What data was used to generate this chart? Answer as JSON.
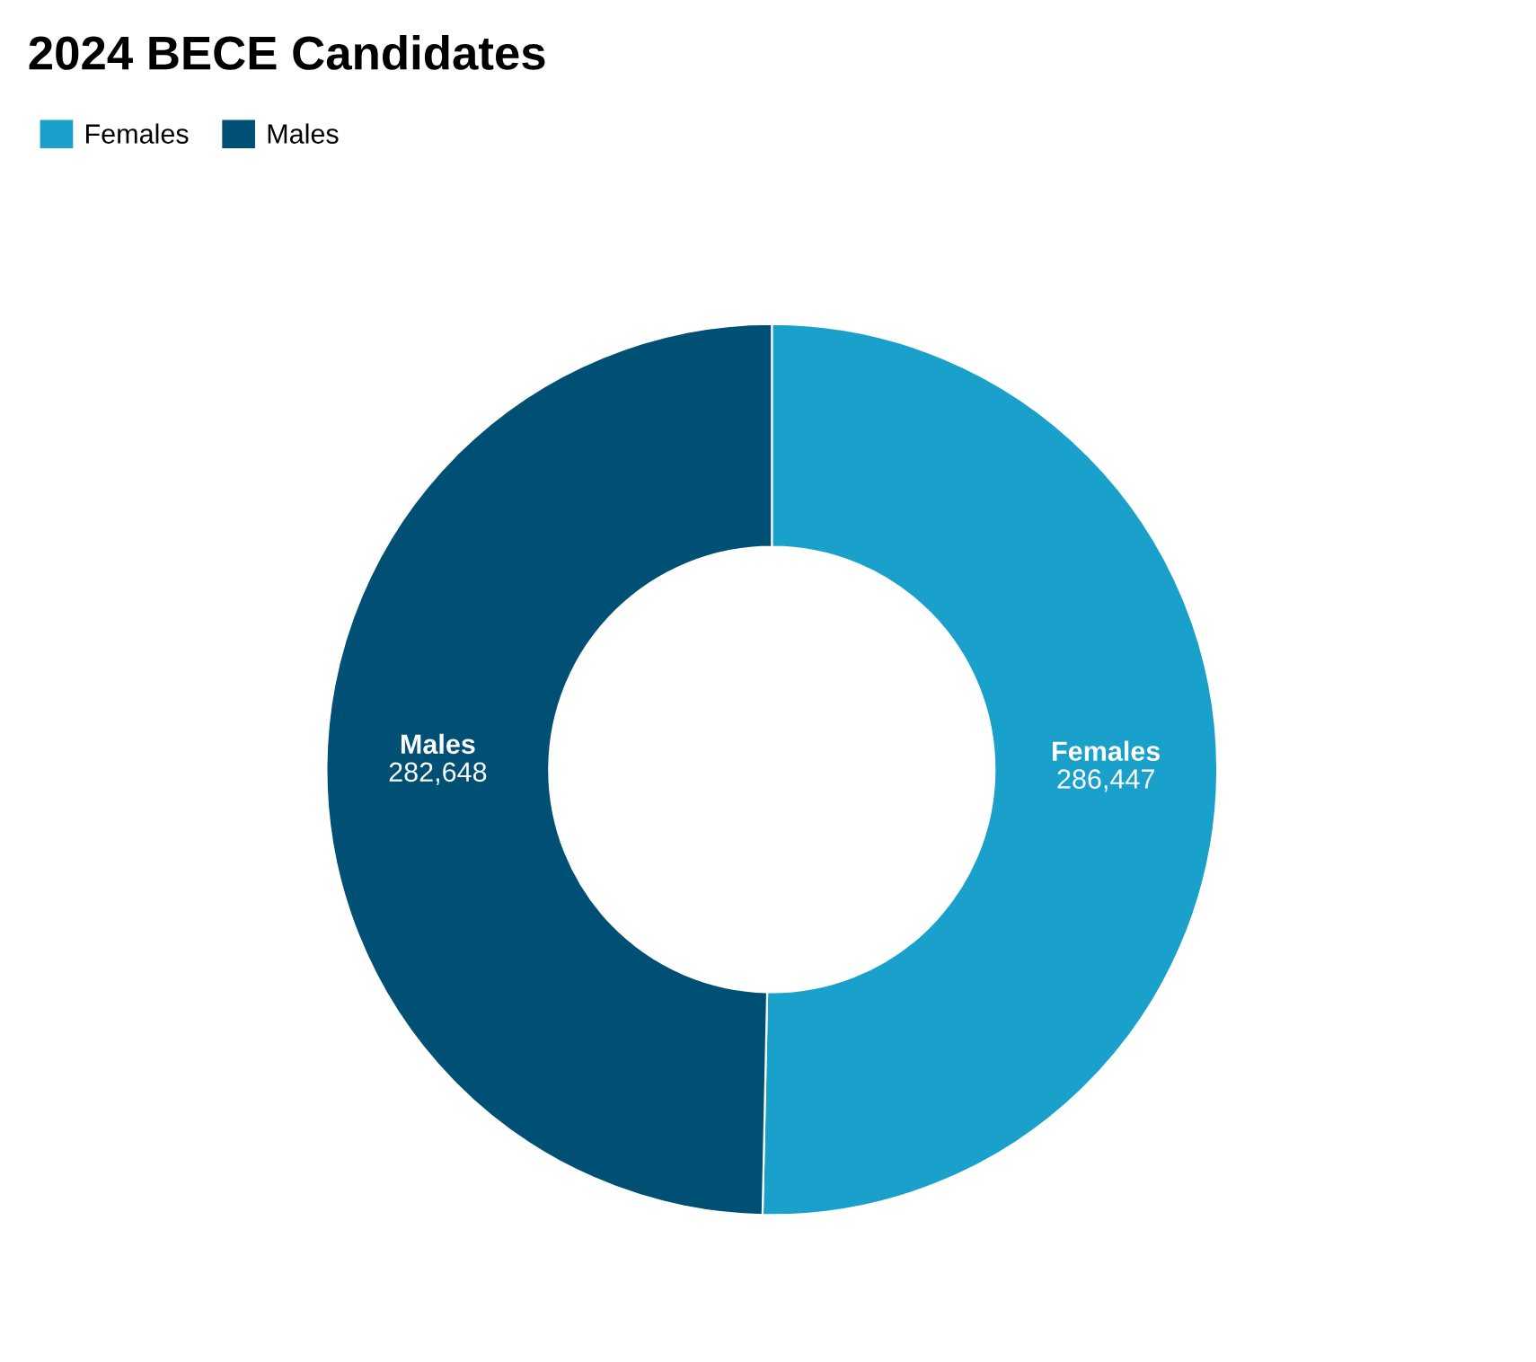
{
  "chart_data": {
    "type": "donut",
    "title": "2024 BECE Candidates",
    "categories": [
      "Females",
      "Males"
    ],
    "values": [
      286447,
      282648
    ],
    "value_labels": [
      "286,447",
      "282,648"
    ],
    "colors": [
      "#19a1cc",
      "#005076"
    ],
    "legend": "top left"
  }
}
